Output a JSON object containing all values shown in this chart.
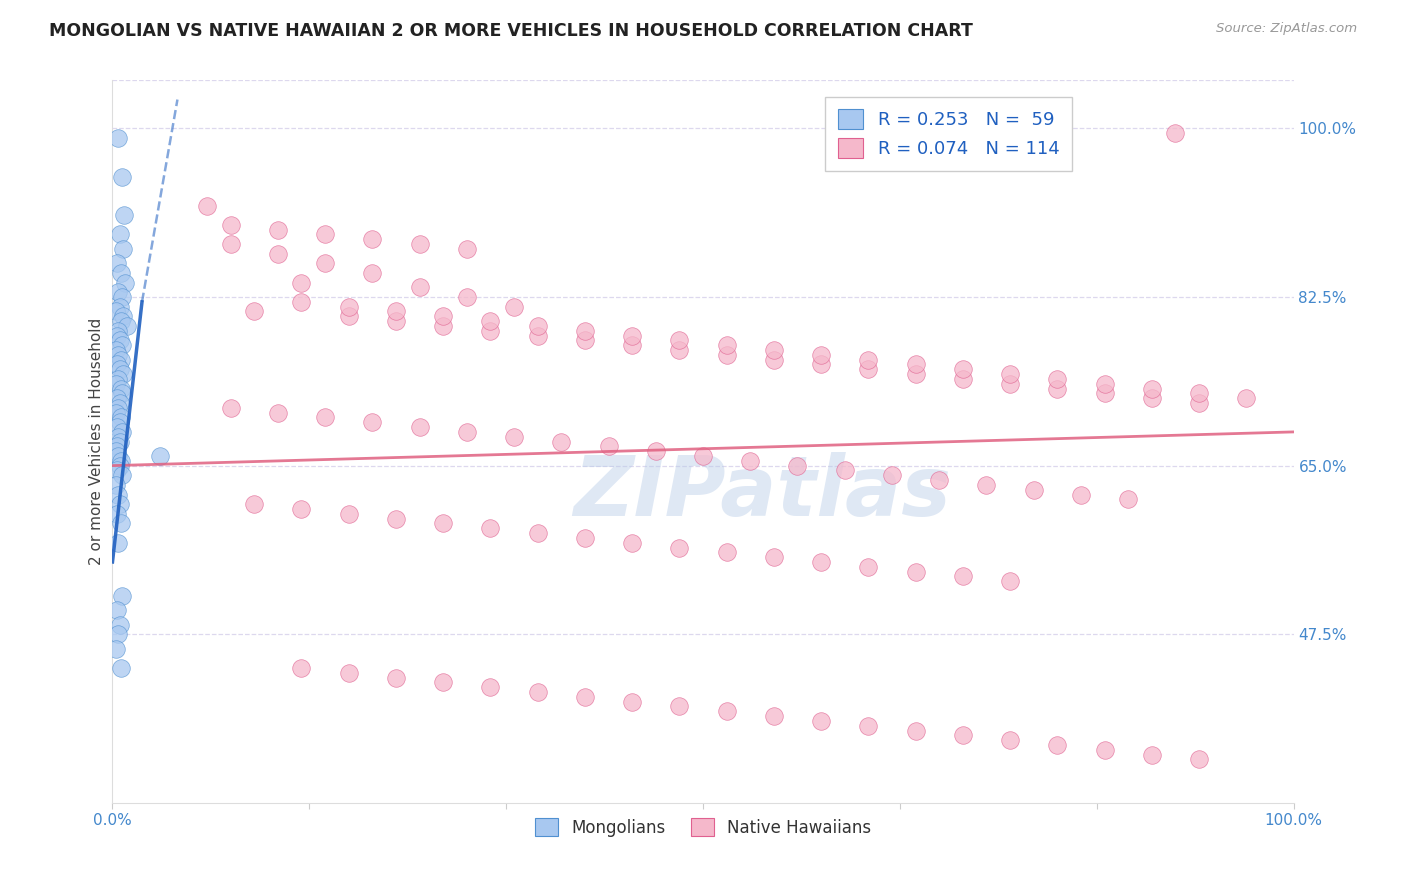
{
  "title": "MONGOLIAN VS NATIVE HAWAIIAN 2 OR MORE VEHICLES IN HOUSEHOLD CORRELATION CHART",
  "source": "Source: ZipAtlas.com",
  "ylabel": "2 or more Vehicles in Household",
  "xlim": [
    0.0,
    100.0
  ],
  "ylim": [
    30.0,
    105.0
  ],
  "yticks": [
    47.5,
    65.0,
    82.5,
    100.0
  ],
  "ytick_labels": [
    "47.5%",
    "65.0%",
    "82.5%",
    "100.0%"
  ],
  "xtick_positions": [
    0.0,
    100.0
  ],
  "xtick_labels": [
    "0.0%",
    "100.0%"
  ],
  "mongolian_color": "#a8c8f0",
  "hawaiian_color": "#f5b8cb",
  "mongolian_edge_color": "#5090d0",
  "hawaiian_edge_color": "#e06090",
  "mongolian_line_color": "#2060c0",
  "hawaiian_line_color": "#e06080",
  "legend_line1": "R = 0.253   N =  59",
  "legend_line2": "R = 0.074   N = 114",
  "mongolian_x": [
    0.5,
    0.8,
    1.0,
    0.6,
    0.9,
    0.4,
    0.7,
    1.1,
    0.5,
    0.8,
    0.6,
    0.3,
    0.9,
    0.7,
    1.2,
    0.5,
    0.4,
    0.6,
    0.8,
    0.3,
    0.5,
    0.7,
    0.4,
    0.6,
    0.9,
    0.5,
    0.3,
    0.7,
    0.8,
    0.4,
    0.6,
    0.5,
    0.3,
    0.7,
    0.6,
    0.4,
    0.8,
    0.5,
    0.6,
    0.4,
    0.3,
    0.5,
    0.7,
    0.6,
    0.4,
    0.8,
    0.3,
    0.5,
    0.6,
    0.4,
    0.7,
    0.5,
    0.8,
    0.4,
    0.6,
    0.5,
    0.3,
    0.7,
    4.0
  ],
  "mongolian_y": [
    99.0,
    95.0,
    91.0,
    89.0,
    87.5,
    86.0,
    85.0,
    84.0,
    83.0,
    82.5,
    81.5,
    81.0,
    80.5,
    80.0,
    79.5,
    79.0,
    78.5,
    78.0,
    77.5,
    77.0,
    76.5,
    76.0,
    75.5,
    75.0,
    74.5,
    74.0,
    73.5,
    73.0,
    72.5,
    72.0,
    71.5,
    71.0,
    70.5,
    70.0,
    69.5,
    69.0,
    68.5,
    68.0,
    67.5,
    67.0,
    66.5,
    66.0,
    65.5,
    65.0,
    64.5,
    64.0,
    63.0,
    62.0,
    61.0,
    60.0,
    59.0,
    57.0,
    51.5,
    50.0,
    48.5,
    47.5,
    46.0,
    44.0,
    66.0
  ],
  "hawaiian_x": [
    90.0,
    8.0,
    10.0,
    14.0,
    18.0,
    22.0,
    16.0,
    26.0,
    30.0,
    34.0,
    12.0,
    20.0,
    24.0,
    28.0,
    32.0,
    36.0,
    40.0,
    44.0,
    48.0,
    52.0,
    56.0,
    60.0,
    64.0,
    68.0,
    72.0,
    76.0,
    80.0,
    84.0,
    88.0,
    92.0,
    10.0,
    14.0,
    18.0,
    22.0,
    26.0,
    30.0,
    34.0,
    38.0,
    42.0,
    46.0,
    50.0,
    54.0,
    58.0,
    62.0,
    66.0,
    70.0,
    74.0,
    78.0,
    82.0,
    86.0,
    12.0,
    16.0,
    20.0,
    24.0,
    28.0,
    32.0,
    36.0,
    40.0,
    44.0,
    48.0,
    52.0,
    56.0,
    60.0,
    64.0,
    68.0,
    72.0,
    76.0,
    16.0,
    20.0,
    24.0,
    28.0,
    32.0,
    36.0,
    40.0,
    44.0,
    48.0,
    52.0,
    56.0,
    60.0,
    64.0,
    68.0,
    72.0,
    76.0,
    80.0,
    84.0,
    88.0,
    92.0,
    96.0,
    16.0,
    20.0,
    24.0,
    28.0,
    32.0,
    36.0,
    40.0,
    44.0,
    48.0,
    52.0,
    56.0,
    60.0,
    64.0,
    68.0,
    72.0,
    76.0,
    80.0,
    84.0,
    88.0,
    92.0,
    10.0,
    14.0,
    18.0,
    22.0,
    26.0,
    30.0
  ],
  "hawaiian_y": [
    99.5,
    92.0,
    88.0,
    87.0,
    86.0,
    85.0,
    84.0,
    83.5,
    82.5,
    81.5,
    81.0,
    80.5,
    80.0,
    79.5,
    79.0,
    78.5,
    78.0,
    77.5,
    77.0,
    76.5,
    76.0,
    75.5,
    75.0,
    74.5,
    74.0,
    73.5,
    73.0,
    72.5,
    72.0,
    71.5,
    71.0,
    70.5,
    70.0,
    69.5,
    69.0,
    68.5,
    68.0,
    67.5,
    67.0,
    66.5,
    66.0,
    65.5,
    65.0,
    64.5,
    64.0,
    63.5,
    63.0,
    62.5,
    62.0,
    61.5,
    61.0,
    60.5,
    60.0,
    59.5,
    59.0,
    58.5,
    58.0,
    57.5,
    57.0,
    56.5,
    56.0,
    55.5,
    55.0,
    54.5,
    54.0,
    53.5,
    53.0,
    82.0,
    81.5,
    81.0,
    80.5,
    80.0,
    79.5,
    79.0,
    78.5,
    78.0,
    77.5,
    77.0,
    76.5,
    76.0,
    75.5,
    75.0,
    74.5,
    74.0,
    73.5,
    73.0,
    72.5,
    72.0,
    44.0,
    43.5,
    43.0,
    42.5,
    42.0,
    41.5,
    41.0,
    40.5,
    40.0,
    39.5,
    39.0,
    38.5,
    38.0,
    37.5,
    37.0,
    36.5,
    36.0,
    35.5,
    35.0,
    34.5,
    90.0,
    89.5,
    89.0,
    88.5,
    88.0,
    87.5
  ],
  "watermark_text": "ZIPatlas",
  "background_color": "#ffffff",
  "grid_color": "#ddd8ee",
  "title_color": "#222222",
  "axis_label_color": "#444444",
  "right_tick_color": "#4488cc",
  "bottom_tick_color": "#4488cc"
}
